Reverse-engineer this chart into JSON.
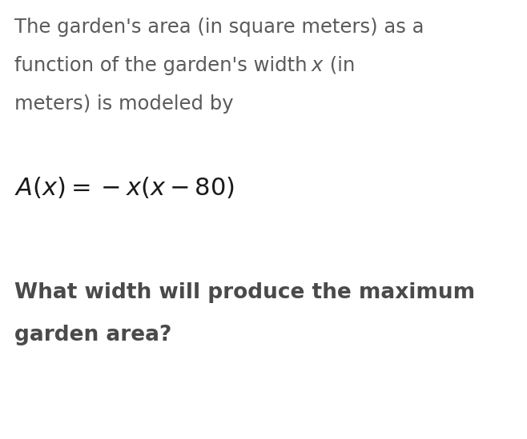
{
  "background_color": "#ffffff",
  "text_color": "#5a5a5a",
  "bold_color": "#4a4a4a",
  "formula_color": "#1a1a1a",
  "para_fontsize": 17.5,
  "formula_fontsize": 22,
  "question_fontsize": 19,
  "line1": "The garden's area (in square meters) as a",
  "line2_before_x": "function of the garden's width ",
  "line2_x": "x",
  "line2_after_x": " (in",
  "line3": "meters) is modeled by",
  "formula": "$A(x) = -x(x - 80)$",
  "q_line1": "What width will produce the maximum",
  "q_line2": "garden area?"
}
